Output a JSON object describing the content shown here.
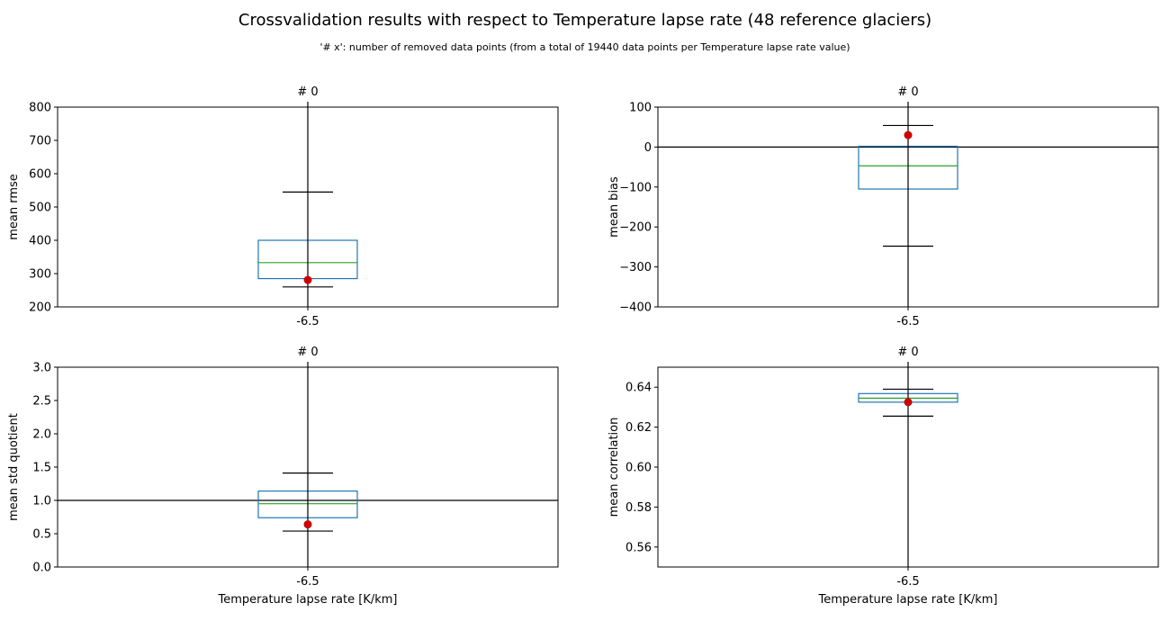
{
  "figure": {
    "title": "Crossvalidation results with respect to Temperature lapse rate  (48 reference glaciers)",
    "subtitle": "'# x': number of removed data points (from a total of 19440 data points per Temperature lapse rate value)"
  },
  "colors": {
    "box": "#1f77b4",
    "median": "#2ca02c",
    "marker": "#cc0000",
    "line": "#000000"
  },
  "chart_data": [
    {
      "type": "box",
      "title": "# 0",
      "xlabel": "",
      "ylabel": "mean rmse",
      "categories": [
        "-6.5"
      ],
      "ylim": [
        200,
        800
      ],
      "yticks": [
        200,
        300,
        400,
        500,
        600,
        700,
        800
      ],
      "ytick_labels": [
        "200",
        "300",
        "400",
        "500",
        "600",
        "700",
        "800"
      ],
      "box": {
        "q1": 285,
        "median": 333,
        "q3": 400,
        "whisker_low": 260,
        "whisker_high": 545
      },
      "marker_value": 281,
      "reference_line": null,
      "vertical_line": true
    },
    {
      "type": "box",
      "title": "# 0",
      "xlabel": "",
      "ylabel": "mean bias",
      "categories": [
        "-6.5"
      ],
      "ylim": [
        -400,
        100
      ],
      "yticks": [
        -400,
        -300,
        -200,
        -100,
        0,
        100
      ],
      "ytick_labels": [
        "−400",
        "−300",
        "−200",
        "−100",
        "0",
        "100"
      ],
      "box": {
        "q1": -105,
        "median": -47,
        "q3": 2,
        "whisker_low": -248,
        "whisker_high": 54
      },
      "marker_value": 30,
      "reference_line": 0,
      "vertical_line": true
    },
    {
      "type": "box",
      "title": "# 0",
      "xlabel": "Temperature lapse rate [K/km]",
      "ylabel": "mean std quotient",
      "categories": [
        "-6.5"
      ],
      "ylim": [
        0,
        3
      ],
      "yticks": [
        0,
        0.5,
        1,
        1.5,
        2,
        2.5,
        3
      ],
      "ytick_labels": [
        "0.0",
        "0.5",
        "1.0",
        "1.5",
        "2.0",
        "2.5",
        "3.0"
      ],
      "box": {
        "q1": 0.74,
        "median": 0.95,
        "q3": 1.14,
        "whisker_low": 0.54,
        "whisker_high": 1.41
      },
      "marker_value": 0.64,
      "reference_line": 1,
      "vertical_line": true
    },
    {
      "type": "box",
      "title": "# 0",
      "xlabel": "Temperature lapse rate [K/km]",
      "ylabel": "mean correlation",
      "categories": [
        "-6.5"
      ],
      "ylim": [
        0.55,
        0.65
      ],
      "yticks": [
        0.56,
        0.58,
        0.6,
        0.62,
        0.64
      ],
      "ytick_labels": [
        "0.56",
        "0.58",
        "0.60",
        "0.62",
        "0.64"
      ],
      "box": {
        "q1": 0.6325,
        "median": 0.6345,
        "q3": 0.6368,
        "whisker_low": 0.6255,
        "whisker_high": 0.639
      },
      "marker_value": 0.6325,
      "reference_line": null,
      "vertical_line": true
    }
  ]
}
